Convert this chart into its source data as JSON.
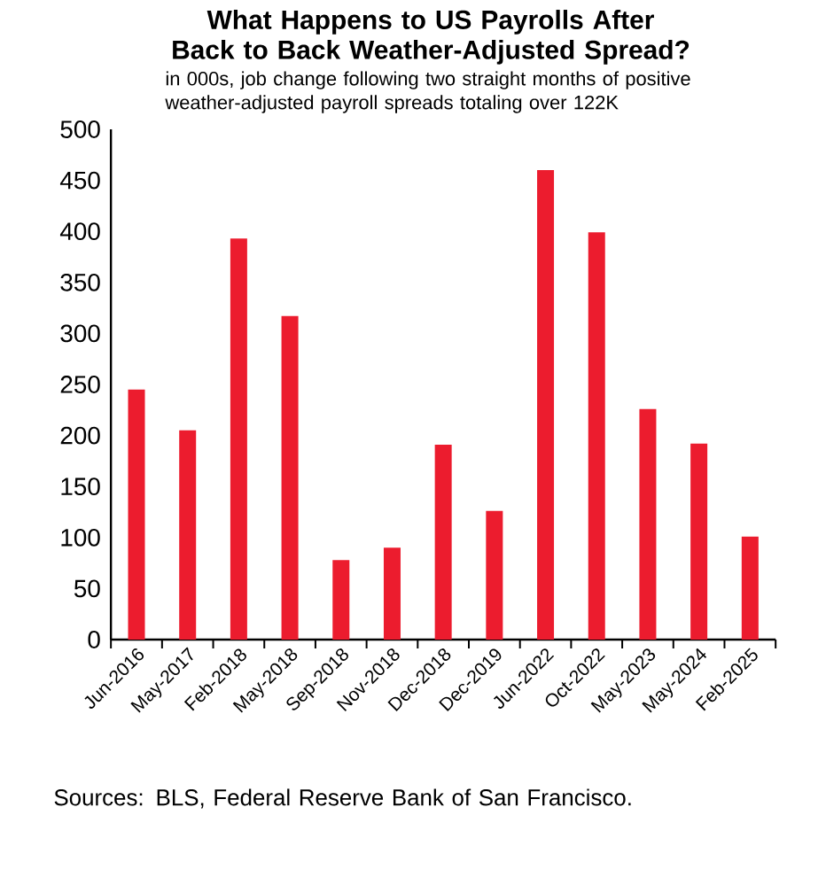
{
  "chart_data": {
    "type": "bar",
    "title": "What Happens to US Payrolls After Back to Back Weather-Adjusted Spread?",
    "subtitle": "in 000s, job change following two straight months of positive weather-adjusted payroll spreads totaling over 122K",
    "categories": [
      "Jun-2016",
      "May-2017",
      "Feb-2018",
      "May-2018",
      "Sep-2018",
      "Nov-2018",
      "Dec-2018",
      "Dec-2019",
      "Jun-2022",
      "Oct-2022",
      "May-2023",
      "May-2024",
      "Feb-2025"
    ],
    "values": [
      245,
      205,
      393,
      317,
      78,
      90,
      191,
      126,
      460,
      399,
      226,
      192,
      101
    ],
    "color": "#ec1c2e",
    "ylim": [
      0,
      500
    ],
    "yticks": [
      0,
      50,
      100,
      150,
      200,
      250,
      300,
      350,
      400,
      450,
      500
    ],
    "annotations": [
      "Sources: BLS, Federal Reserve Bank of San Francisco."
    ]
  }
}
